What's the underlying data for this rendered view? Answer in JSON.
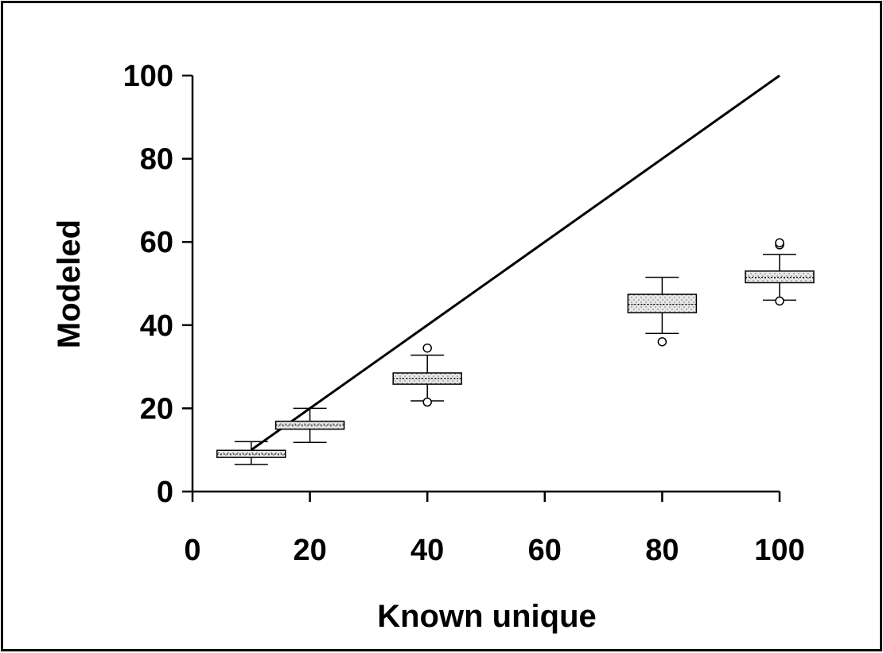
{
  "chart_data": {
    "type": "box",
    "xlabel": "Known unique",
    "ylabel": "Modeled",
    "xlim": [
      0,
      100
    ],
    "ylim": [
      0,
      100
    ],
    "x_ticks": [
      0,
      20,
      40,
      60,
      80,
      100
    ],
    "y_ticks": [
      0,
      20,
      40,
      60,
      80,
      100
    ],
    "reference_line": {
      "type": "identity",
      "points": [
        [
          10,
          10
        ],
        [
          100,
          100
        ]
      ],
      "color": "#000000"
    },
    "boxes": [
      {
        "x": 10,
        "whisker_low": 6.5,
        "q1": 8.2,
        "median": 9.0,
        "q3": 9.9,
        "whisker_high": 12.0,
        "outliers": []
      },
      {
        "x": 20,
        "whisker_low": 11.8,
        "q1": 15.0,
        "median": 16.0,
        "q3": 16.9,
        "whisker_high": 20.0,
        "outliers": []
      },
      {
        "x": 40,
        "whisker_low": 21.8,
        "q1": 25.8,
        "median": 27.2,
        "q3": 28.5,
        "whisker_high": 32.8,
        "outliers": [
          21.5,
          34.5
        ]
      },
      {
        "x": 80,
        "whisker_low": 38.0,
        "q1": 43.0,
        "median": 45.0,
        "q3": 47.4,
        "whisker_high": 51.5,
        "outliers": [
          36.0
        ]
      },
      {
        "x": 100,
        "whisker_low": 46.0,
        "q1": 50.2,
        "median": 51.5,
        "q3": 53.0,
        "whisker_high": 57.0,
        "outliers": [
          45.8,
          59.3,
          59.8
        ]
      }
    ],
    "box_fill": "#e4e4e4",
    "box_stroke": "#000000",
    "grid": false,
    "legend": "none"
  }
}
